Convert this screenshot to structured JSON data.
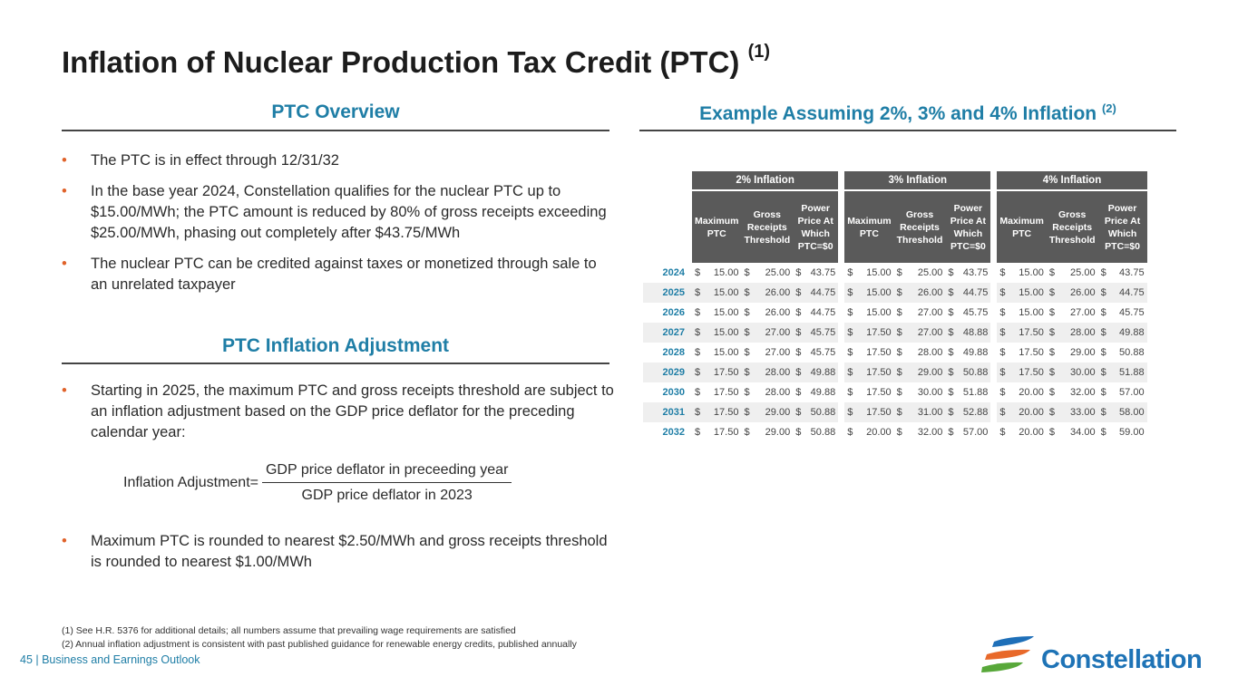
{
  "title": "Inflation of Nuclear Production Tax Credit (PTC)",
  "title_sup": "(1)",
  "overview": {
    "heading": "PTC Overview",
    "bullets": [
      "The PTC is in effect through 12/31/32",
      "In the base year 2024, Constellation qualifies for the nuclear PTC up to $15.00/MWh; the PTC amount is reduced by 80% of gross receipts exceeding $25.00/MWh, phasing out completely after $43.75/MWh",
      "The nuclear PTC can be credited against taxes or monetized through sale to an unrelated taxpayer"
    ]
  },
  "adjustment": {
    "heading": "PTC Inflation Adjustment",
    "bullets": [
      "Starting in 2025, the maximum PTC and gross receipts threshold are subject to an inflation adjustment based on the GDP price deflator for the preceding calendar year:",
      "Maximum PTC is rounded to nearest $2.50/MWh and gross receipts threshold is rounded to nearest $1.00/MWh"
    ],
    "formula": {
      "label": "Inflation Adjustment=",
      "numerator": "GDP price deflator in preceeding year",
      "denominator": "GDP price deflator in 2023"
    }
  },
  "example": {
    "heading": "Example Assuming 2%, 3% and 4% Inflation",
    "heading_sup": "(2)",
    "groups": [
      "2% Inflation",
      "3% Inflation",
      "4% Inflation"
    ],
    "columns": [
      "Maximum PTC",
      "Gross Receipts Threshold",
      "Power Price At Which PTC=$0"
    ],
    "currency": "$",
    "rows": [
      {
        "year": "2024",
        "values": [
          "15.00",
          "25.00",
          "43.75",
          "15.00",
          "25.00",
          "43.75",
          "15.00",
          "25.00",
          "43.75"
        ]
      },
      {
        "year": "2025",
        "values": [
          "15.00",
          "26.00",
          "44.75",
          "15.00",
          "26.00",
          "44.75",
          "15.00",
          "26.00",
          "44.75"
        ]
      },
      {
        "year": "2026",
        "values": [
          "15.00",
          "26.00",
          "44.75",
          "15.00",
          "27.00",
          "45.75",
          "15.00",
          "27.00",
          "45.75"
        ]
      },
      {
        "year": "2027",
        "values": [
          "15.00",
          "27.00",
          "45.75",
          "17.50",
          "27.00",
          "48.88",
          "17.50",
          "28.00",
          "49.88"
        ]
      },
      {
        "year": "2028",
        "values": [
          "15.00",
          "27.00",
          "45.75",
          "17.50",
          "28.00",
          "49.88",
          "17.50",
          "29.00",
          "50.88"
        ]
      },
      {
        "year": "2029",
        "values": [
          "17.50",
          "28.00",
          "49.88",
          "17.50",
          "29.00",
          "50.88",
          "17.50",
          "30.00",
          "51.88"
        ]
      },
      {
        "year": "2030",
        "values": [
          "17.50",
          "28.00",
          "49.88",
          "17.50",
          "30.00",
          "51.88",
          "20.00",
          "32.00",
          "57.00"
        ]
      },
      {
        "year": "2031",
        "values": [
          "17.50",
          "29.00",
          "50.88",
          "17.50",
          "31.00",
          "52.88",
          "20.00",
          "33.00",
          "58.00"
        ]
      },
      {
        "year": "2032",
        "values": [
          "17.50",
          "29.00",
          "50.88",
          "20.00",
          "32.00",
          "57.00",
          "20.00",
          "34.00",
          "59.00"
        ]
      }
    ]
  },
  "footnotes": [
    "(1)    See H.R. 5376 for additional details; all numbers assume that prevailing wage requirements are satisfied",
    "(2)    Annual inflation adjustment is consistent with past published guidance for renewable energy credits, published annually"
  ],
  "footer": "45 | Business and Earnings Outlook",
  "logo": "Constellation"
}
